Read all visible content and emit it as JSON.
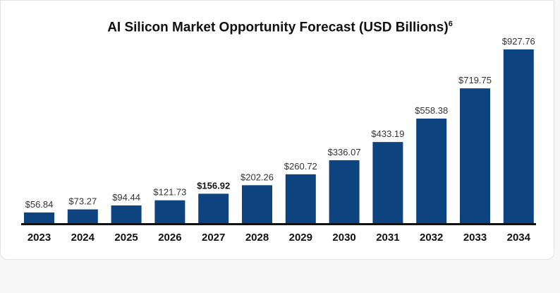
{
  "chart_data": {
    "type": "bar",
    "title": "AI Silicon Market Opportunity Forecast (USD Billions)",
    "title_footnote": "6",
    "categories": [
      "2023",
      "2024",
      "2025",
      "2026",
      "2027",
      "2028",
      "2029",
      "2030",
      "2031",
      "2032",
      "2033",
      "2034"
    ],
    "values": [
      56.84,
      73.27,
      94.44,
      121.73,
      156.92,
      202.26,
      260.72,
      336.07,
      433.19,
      558.38,
      719.75,
      927.76
    ],
    "value_labels": [
      "$56.84",
      "$73.27",
      "$94.44",
      "$121.73",
      "$156.92",
      "$202.26",
      "$260.72",
      "$336.07",
      "$433.19",
      "$558.38",
      "$719.75",
      "$927.76"
    ],
    "highlighted_index": 4,
    "ylim": [
      0,
      927.76
    ],
    "grid": false,
    "legend": "none",
    "bar_color": "#0d4480",
    "baseline_color": "#111111"
  }
}
